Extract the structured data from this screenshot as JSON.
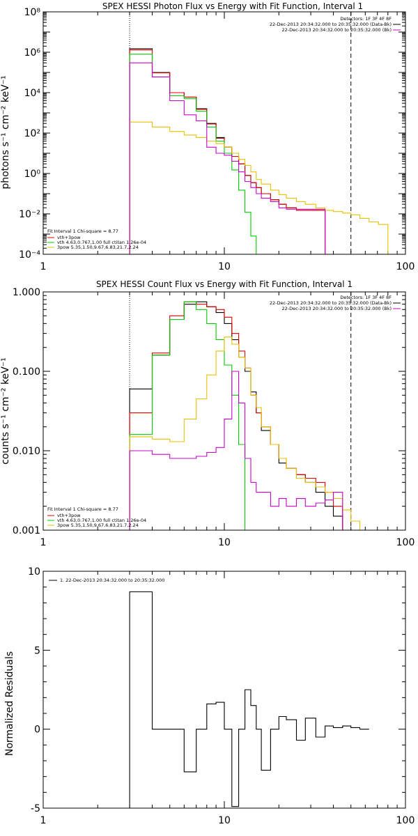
{
  "panels": {
    "photon": {
      "title": "SPEX HESSI Photon Flux vs Energy with Fit Function, Interval 1",
      "ylabel": "photons s⁻¹ cm⁻² keV⁻¹",
      "x_ticks": [
        "1",
        "10",
        "100"
      ],
      "y_ticks": [
        "10⁻⁴",
        "10⁻²",
        "10⁰",
        "10²",
        "10⁴",
        "10⁶",
        "10⁸"
      ],
      "legend_tr": {
        "detectors": "Detectors: 1F 3F 4F 8F",
        "lines": [
          {
            "text": "22-Dec-2013 20:34:32.000 to 20:35:32.000 (Data-Bk)",
            "color": "#000000"
          },
          {
            "text": "22-Dec-2013 20:34:32.000 to 20:35:32.000 (Bk)",
            "color": "#cc00cc"
          }
        ]
      },
      "legend_bl": {
        "header": "Fit Interval 1    Chi-square = 8.77",
        "lines": [
          {
            "text": "vth+3pow",
            "color": "#e00000"
          },
          {
            "text": "vth 4.63,0.767,1.00  full ctitan 1.26e-04",
            "color": "#00cc00"
          },
          {
            "text": "3pow 5.35,1.50,9.67,6.83,21.7,2.24",
            "color": "#e8c000"
          }
        ]
      }
    },
    "count": {
      "title": "SPEX HESSI Count Flux vs Energy with Fit Function, Interval 1",
      "ylabel": "counts s⁻¹ cm⁻² keV⁻¹",
      "x_ticks": [
        "1",
        "10",
        "100"
      ],
      "y_ticks": [
        "0.001",
        "0.010",
        "0.100",
        "1.000"
      ],
      "legend_tr": {
        "detectors": "Detectors: 1F 3F 4F 8F",
        "lines": [
          {
            "text": "22-Dec-2013 20:34:32.000 to 20:35:32.000 (Data-Bk)",
            "color": "#000000"
          },
          {
            "text": "22-Dec-2013 20:34:32.000 to 20:35:32.000 (Bk)",
            "color": "#cc00cc"
          }
        ]
      },
      "legend_bl": {
        "header": "Fit Interval 1    Chi-square = 8.77",
        "lines": [
          {
            "text": "vth+3pow",
            "color": "#e00000"
          },
          {
            "text": "vth 4.63,0.767,1.00  full ctitan 1.26e-04",
            "color": "#00cc00"
          },
          {
            "text": "3pow 5.35,1.50,9.67,6.83,21.7,2.24",
            "color": "#e8c000"
          }
        ]
      }
    },
    "resid": {
      "ylabel": "Normalized Residuals",
      "x_ticks": [
        "1",
        "10",
        "100"
      ],
      "y_ticks": [
        "-5",
        "0",
        "5",
        "10"
      ],
      "legend": "1. 22-Dec-2013 20:34:32.000 to 20:35:32.000"
    }
  },
  "chart_data": [
    {
      "type": "line",
      "title": "SPEX HESSI Photon Flux vs Energy with Fit Function, Interval 1",
      "ylabel": "photons s⁻¹ cm⁻² keV⁻¹",
      "xscale": "log",
      "yscale": "log",
      "xlim": [
        1,
        100
      ],
      "ylim": [
        0.0001,
        100000000
      ],
      "vlines": [
        {
          "x": 3,
          "style": "dotted"
        },
        {
          "x": 50,
          "style": "dashed"
        }
      ],
      "edges": [
        3,
        4,
        5,
        6,
        7,
        8,
        9,
        10,
        11,
        12,
        13,
        14,
        15,
        16,
        18,
        20,
        22,
        25,
        28,
        32,
        36,
        40,
        45,
        50,
        56,
        63,
        71,
        80,
        90,
        100
      ],
      "series": [
        {
          "name": "Data-Bk",
          "color": "#000000",
          "start": 3,
          "values": [
            1500000,
            100000,
            10000,
            6000,
            1600,
            300,
            60,
            20,
            7,
            3,
            0.8,
            0.35,
            0.2,
            0.1,
            0.05,
            0.03,
            0.02,
            0.015,
            0.015,
            0.015
          ]
        },
        {
          "name": "vth+3pow",
          "color": "#e00000",
          "start": 3,
          "values": [
            1300000,
            95000,
            10000,
            6000,
            1500,
            280,
            55,
            20,
            7,
            3,
            0.8,
            0.35,
            0.2,
            0.1,
            0.05,
            0.03,
            0.02,
            0.015,
            0.015,
            0.015
          ]
        },
        {
          "name": "vth",
          "color": "#00cc00",
          "start": 3,
          "values": [
            800000,
            60000,
            7000,
            5000,
            1200,
            200,
            40,
            10,
            1.5,
            0.15,
            0.012,
            0.0008,
            5e-05
          ]
        },
        {
          "name": "3pow",
          "color": "#e8c000",
          "start": 3,
          "values": [
            350,
            200,
            120,
            80,
            60,
            40,
            30,
            20,
            10,
            5,
            2.5,
            1.2,
            0.5,
            0.3,
            0.15,
            0.09,
            0.06,
            0.04,
            0.03,
            0.02,
            0.015,
            0.013,
            0.011,
            0.009,
            0.006,
            0.004,
            0.003
          ]
        },
        {
          "name": "Bk",
          "color": "#cc00cc",
          "start": 3,
          "values": [
            300000,
            60000,
            4000,
            800,
            400,
            20,
            10,
            8,
            4,
            1.2,
            0.4,
            0.2,
            0.1,
            0.06,
            0.04,
            0.02,
            0.017,
            0.017,
            0.017,
            0.017
          ]
        }
      ]
    },
    {
      "type": "line",
      "title": "SPEX HESSI Count Flux vs Energy with Fit Function, Interval 1",
      "ylabel": "counts s⁻¹ cm⁻² keV⁻¹",
      "xscale": "log",
      "yscale": "log",
      "xlim": [
        1,
        100
      ],
      "ylim": [
        0.001,
        1.0
      ],
      "vlines": [
        {
          "x": 3,
          "style": "dotted"
        },
        {
          "x": 50,
          "style": "dashed"
        }
      ],
      "edges": [
        3,
        4,
        5,
        6,
        7,
        8,
        9,
        10,
        11,
        12,
        13,
        14,
        15,
        16,
        18,
        20,
        22,
        25,
        28,
        32,
        36,
        40,
        45,
        50,
        56,
        63,
        71,
        80,
        90,
        100
      ],
      "series": [
        {
          "name": "Data-Bk",
          "color": "#000000",
          "start": 3,
          "values": [
            0.06,
            0.16,
            0.45,
            0.7,
            0.75,
            0.65,
            0.55,
            0.4,
            0.25,
            0.15,
            0.1,
            0.055,
            0.03,
            0.018,
            0.012,
            0.007,
            0.006,
            0.005,
            0.004,
            0.003,
            0.002,
            0.0015
          ]
        },
        {
          "name": "vth+3pow",
          "color": "#e00000",
          "start": 3,
          "values": [
            0.03,
            0.17,
            0.5,
            0.75,
            0.7,
            0.65,
            0.6,
            0.48,
            0.3,
            0.18,
            0.11,
            0.05,
            0.03,
            0.02,
            0.012,
            0.008,
            0.006,
            0.005,
            0.0045,
            0.004,
            0.003,
            0.002
          ]
        },
        {
          "name": "vth",
          "color": "#00cc00",
          "start": 3,
          "values": [
            0.016,
            0.16,
            0.45,
            0.75,
            0.6,
            0.4,
            0.25,
            0.12,
            0.05,
            0.012,
            0.0008
          ]
        },
        {
          "name": "3pow",
          "color": "#e8c000",
          "start": 3,
          "values": [
            0.015,
            0.014,
            0.013,
            0.025,
            0.045,
            0.09,
            0.18,
            0.27,
            0.22,
            0.15,
            0.11,
            0.05,
            0.035,
            0.02,
            0.012,
            0.008,
            0.006,
            0.0045,
            0.004,
            0.0035,
            0.003,
            0.0025,
            0.0018,
            0.0013,
            0.001
          ]
        },
        {
          "name": "Bk",
          "color": "#cc00cc",
          "start": 3,
          "values": [
            0.01,
            0.009,
            0.008,
            0.008,
            0.0085,
            0.0095,
            0.011,
            0.025,
            0.1,
            0.04,
            0.008,
            0.004,
            0.003,
            0.003,
            0.002,
            0.0025,
            0.002,
            0.0025,
            0.002,
            0.0022,
            0.0024,
            0.003
          ]
        }
      ]
    },
    {
      "type": "line",
      "ylabel": "Normalized Residuals",
      "xscale": "log",
      "yscale": "linear",
      "xlim": [
        1,
        100
      ],
      "ylim": [
        -5,
        10
      ],
      "edges": [
        3,
        4,
        5,
        6,
        7,
        8,
        9,
        10,
        11,
        12,
        13,
        14,
        15,
        16,
        18,
        20,
        22,
        25,
        28,
        32,
        36,
        40,
        45,
        50,
        56,
        63,
        71,
        80,
        90,
        100
      ],
      "series": [
        {
          "name": "1. 22-Dec-2013 20:34:32.000 to 20:35:32.000",
          "color": "#000000",
          "start": 3,
          "values": [
            8.7,
            0,
            0,
            -2.7,
            0,
            1.6,
            1.7,
            0,
            -4.9,
            0,
            2.5,
            1.5,
            0,
            -2.6,
            0,
            0.8,
            0.6,
            -0.7,
            0.7,
            -0.5,
            0.2,
            0.1,
            0.2,
            0.1,
            0
          ]
        }
      ]
    }
  ]
}
